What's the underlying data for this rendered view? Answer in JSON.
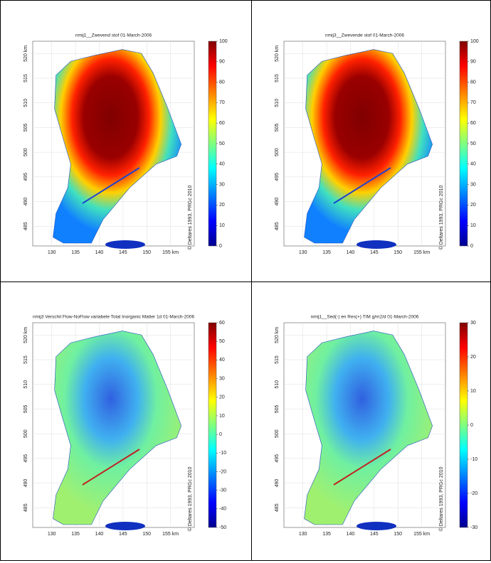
{
  "panels": [
    {
      "title": "nmij1__Zwevend stof 01-March-2006",
      "style": "concentration",
      "colorbar": {
        "lim": [
          0,
          100
        ],
        "ticks": [
          0,
          10,
          20,
          30,
          40,
          50,
          60,
          70,
          80,
          90,
          100
        ]
      },
      "map": {
        "xlim": [
          126,
          160
        ],
        "ylim": [
          481,
          522.5
        ],
        "xticks": [
          130,
          135,
          140,
          145,
          150,
          {
            "value": 155,
            "label": "155 km"
          }
        ],
        "yticks": [
          485,
          490,
          495,
          500,
          505,
          510,
          515,
          {
            "value": 520,
            "label": "520 km"
          }
        ]
      },
      "credit": "© Deltares 1993, PRGc 2010"
    },
    {
      "title": "nmij3__Zwevende stof 01-March-2006",
      "style": "concentration",
      "colorbar": {
        "lim": [
          0,
          100
        ],
        "ticks": [
          0,
          10,
          20,
          30,
          40,
          50,
          60,
          70,
          80,
          90,
          100
        ]
      },
      "map": {
        "xlim": [
          126,
          160
        ],
        "ylim": [
          481,
          522.5
        ],
        "xticks": [
          130,
          135,
          140,
          145,
          150,
          {
            "value": 155,
            "label": "155 km"
          }
        ],
        "yticks": [
          485,
          490,
          495,
          500,
          505,
          510,
          515,
          {
            "value": 520,
            "label": "520 km"
          }
        ]
      },
      "credit": "© Deltares 1993, PRGc 2010"
    },
    {
      "title": "nmij3 Verschil Flow-NoFlow variabele Total Inorganic Matter 1d 01-March-2006",
      "style": "difference",
      "colorbar": {
        "lim": [
          -50,
          60
        ],
        "ticks": [
          -50,
          -40,
          -30,
          -20,
          -10,
          0,
          10,
          20,
          30,
          40,
          50,
          60
        ]
      },
      "map": {
        "xlim": [
          126,
          160
        ],
        "ylim": [
          481,
          522.5
        ],
        "xticks": [
          130,
          135,
          140,
          145,
          150,
          {
            "value": 155,
            "label": "155 km"
          }
        ],
        "yticks": [
          485,
          490,
          495,
          500,
          505,
          510,
          515,
          {
            "value": 520,
            "label": "520 km"
          }
        ]
      },
      "credit": "© Deltares 1993, PRGc 2010"
    },
    {
      "title": "nmij1__Sed(-) en Res(+) TIM g/m2/d 01-March-2006",
      "style": "difference",
      "colorbar": {
        "lim": [
          -30,
          30
        ],
        "ticks": [
          -30,
          -20,
          -10,
          0,
          10,
          20,
          30
        ]
      },
      "map": {
        "xlim": [
          126,
          160
        ],
        "ylim": [
          481,
          522.5
        ],
        "xticks": [
          130,
          135,
          140,
          145,
          150,
          {
            "value": 155,
            "label": "155 km"
          }
        ],
        "yticks": [
          485,
          490,
          495,
          500,
          505,
          510,
          515,
          {
            "value": 520,
            "label": "520 km"
          }
        ]
      },
      "credit": "© Deltares 1993, PRGc 2010"
    }
  ]
}
